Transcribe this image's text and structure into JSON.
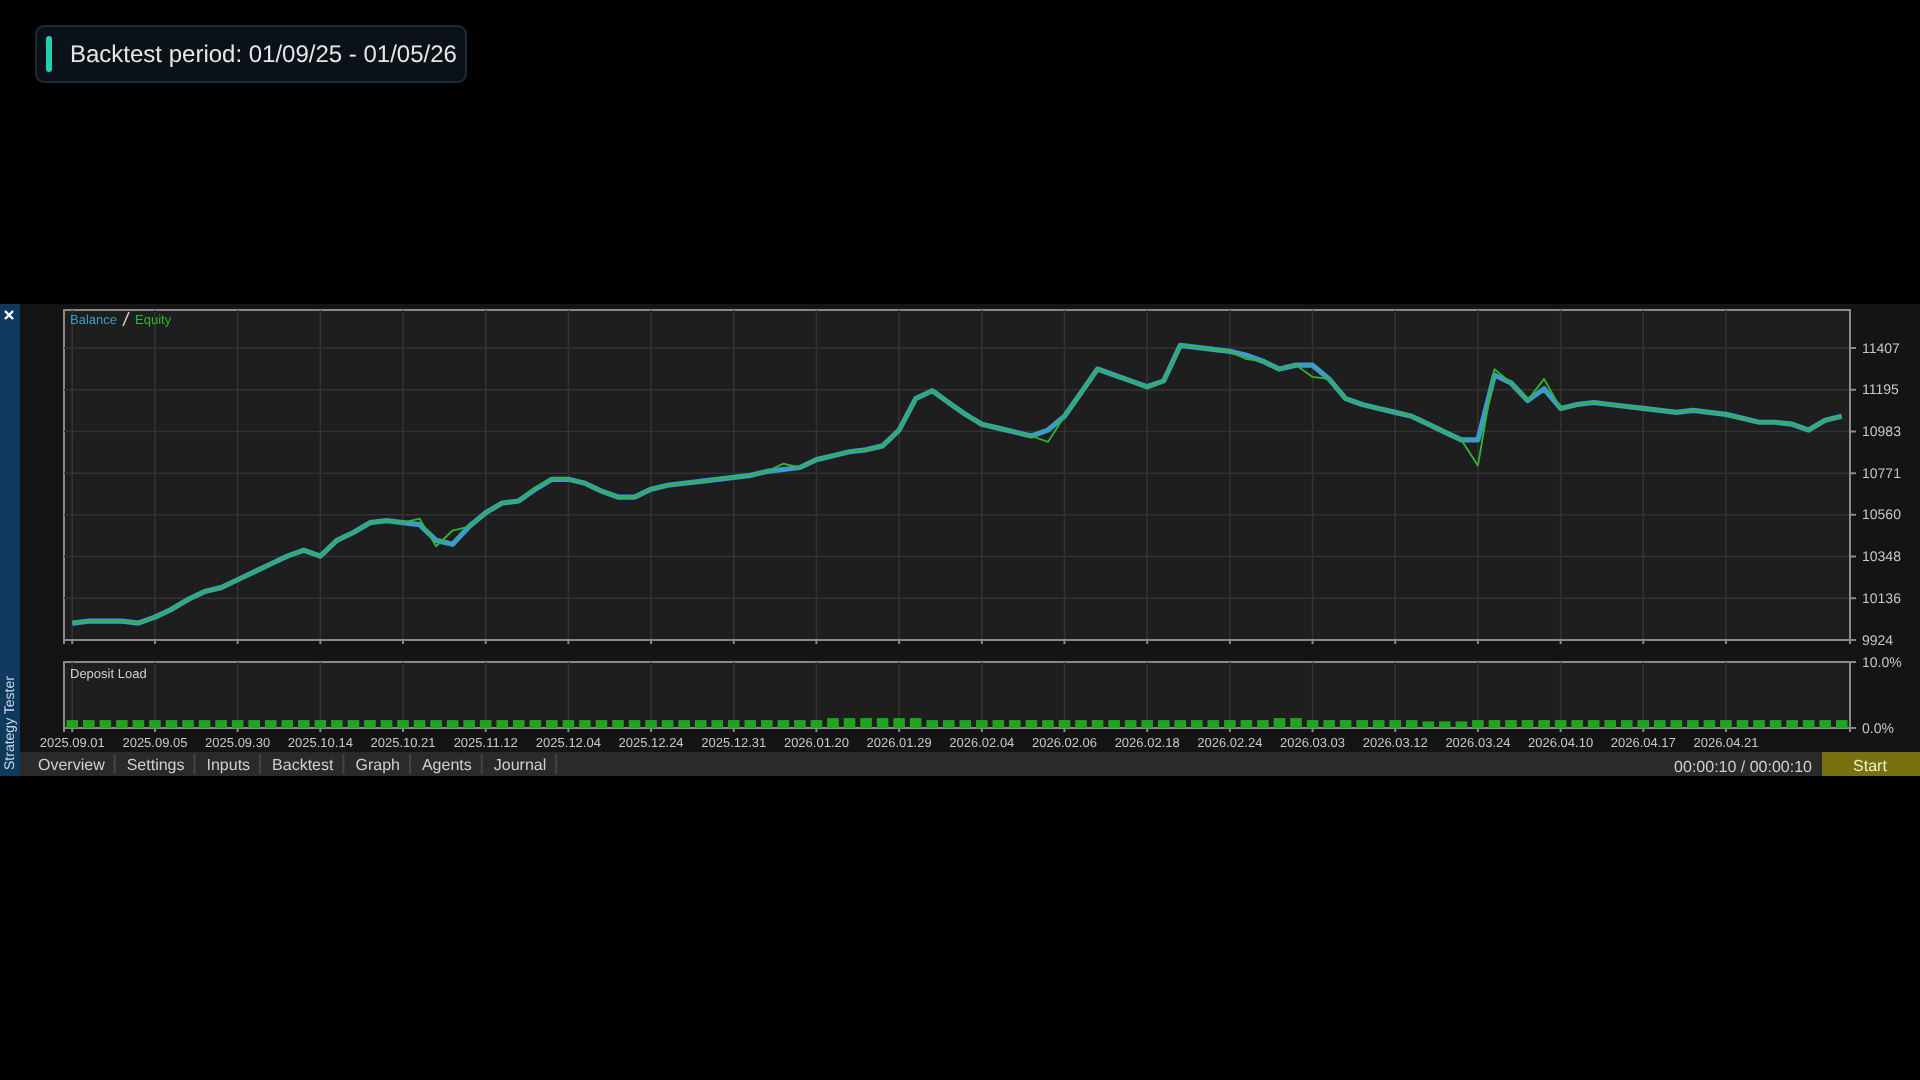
{
  "chart_data": [
    {
      "type": "line",
      "title": "Backtest period: 01/09/25 - 01/05/26",
      "ylim": [
        9924,
        11600
      ],
      "categories": [
        "2025.09.01",
        null,
        null,
        null,
        null,
        "2025.09.05",
        null,
        null,
        null,
        null,
        "2025.09.30",
        null,
        null,
        null,
        null,
        "2025.10.14",
        null,
        null,
        null,
        null,
        "2025.10.21",
        null,
        null,
        null,
        null,
        "2025.11.12",
        null,
        null,
        null,
        null,
        "2025.12.04",
        null,
        null,
        null,
        null,
        "2025.12.24",
        null,
        null,
        null,
        null,
        "2025.12.31",
        null,
        null,
        null,
        null,
        "2026.01.20",
        null,
        null,
        null,
        null,
        "2026.01.29",
        null,
        null,
        null,
        null,
        "2026.02.04",
        null,
        null,
        null,
        null,
        "2026.02.06",
        null,
        null,
        null,
        null,
        "2026.02.18",
        null,
        null,
        null,
        null,
        "2026.02.24",
        null,
        null,
        null,
        null,
        "2026.03.03",
        null,
        null,
        null,
        null,
        "2026.03.12",
        null,
        null,
        null,
        null,
        "2026.03.24",
        null,
        null,
        null,
        null,
        "2026.04.10",
        null,
        null,
        null,
        null,
        "2026.04.17",
        null,
        null,
        null,
        null,
        "2026.04.21",
        null,
        null,
        null,
        null,
        null,
        null,
        null
      ],
      "yticks": [
        9924,
        10136,
        10348,
        10560,
        10771,
        10983,
        11195,
        11407
      ],
      "tick_labels": "y",
      "grid": true,
      "legend": "top left",
      "series": [
        {
          "name": "Balance",
          "color": "#3b9cc4",
          "values": [
            10010,
            10020,
            10020,
            10020,
            10010,
            10040,
            10080,
            10130,
            10170,
            10190,
            10230,
            10270,
            10310,
            10350,
            10380,
            10350,
            10430,
            10470,
            10520,
            10530,
            10520,
            10510,
            10430,
            10410,
            10500,
            10570,
            10620,
            10630,
            10690,
            10740,
            10740,
            10720,
            10680,
            10650,
            10650,
            10690,
            10710,
            10720,
            10730,
            10740,
            10750,
            10760,
            10780,
            10790,
            10800,
            10840,
            10860,
            10880,
            10890,
            10910,
            10990,
            11150,
            11190,
            11130,
            11070,
            11020,
            11000,
            10980,
            10960,
            10990,
            11060,
            11180,
            11300,
            11270,
            11240,
            11210,
            11240,
            11420,
            11410,
            11400,
            11390,
            11370,
            11340,
            11300,
            11320,
            11320,
            11250,
            11150,
            11120,
            11100,
            11080,
            11060,
            11020,
            10980,
            10940,
            10940,
            11270,
            11230,
            11140,
            11200,
            11100,
            11120,
            11130,
            11120,
            11110,
            11100,
            11090,
            11080,
            11090,
            11080,
            11070,
            11050,
            11030,
            11030,
            11020,
            10990,
            11040,
            11060
          ]
        },
        {
          "name": "Equity",
          "color": "#2fb82f",
          "values": [
            10010,
            10020,
            10020,
            10020,
            10010,
            10040,
            10080,
            10130,
            10170,
            10190,
            10230,
            10270,
            10310,
            10350,
            10380,
            10350,
            10430,
            10470,
            10520,
            10530,
            10520,
            10540,
            10400,
            10480,
            10500,
            10570,
            10620,
            10630,
            10700,
            10740,
            10740,
            10720,
            10680,
            10650,
            10650,
            10690,
            10710,
            10720,
            10730,
            10740,
            10750,
            10760,
            10780,
            10820,
            10800,
            10840,
            10860,
            10880,
            10890,
            10910,
            10990,
            11150,
            11190,
            11130,
            11070,
            11020,
            11000,
            10980,
            10960,
            10930,
            11060,
            11180,
            11300,
            11270,
            11240,
            11210,
            11240,
            11420,
            11410,
            11400,
            11390,
            11350,
            11340,
            11300,
            11320,
            11260,
            11250,
            11150,
            11120,
            11100,
            11080,
            11060,
            11020,
            10980,
            10940,
            10810,
            11300,
            11230,
            11140,
            11250,
            11100,
            11120,
            11130,
            11120,
            11110,
            11100,
            11090,
            11080,
            11090,
            11080,
            11070,
            11050,
            11030,
            11030,
            11020,
            10990,
            11040,
            11060
          ]
        }
      ]
    },
    {
      "type": "bar",
      "title": "Deposit Load",
      "ylim": [
        0,
        10
      ],
      "categories": [
        "2025.09.01",
        null,
        null,
        null,
        null,
        "2025.09.05",
        null,
        null,
        null,
        null,
        "2025.09.30",
        null,
        null,
        null,
        null,
        "2025.10.14",
        null,
        null,
        null,
        null,
        "2025.10.21",
        null,
        null,
        null,
        null,
        "2025.11.12",
        null,
        null,
        null,
        null,
        "2025.12.04",
        null,
        null,
        null,
        null,
        "2025.12.24",
        null,
        null,
        null,
        null,
        "2025.12.31",
        null,
        null,
        null,
        null,
        "2026.01.20",
        null,
        null,
        null,
        null,
        "2026.01.29",
        null,
        null,
        null,
        null,
        "2026.02.04",
        null,
        null,
        null,
        null,
        "2026.02.06",
        null,
        null,
        null,
        null,
        "2026.02.18",
        null,
        null,
        null,
        null,
        "2026.02.24",
        null,
        null,
        null,
        null,
        "2026.03.03",
        null,
        null,
        null,
        null,
        "2026.03.12",
        null,
        null,
        null,
        null,
        "2026.03.24",
        null,
        null,
        null,
        null,
        "2026.04.10",
        null,
        null,
        null,
        null,
        "2026.04.17",
        null,
        null,
        null,
        null,
        "2026.04.21",
        null,
        null,
        null,
        null,
        null,
        null,
        null
      ],
      "yticks": [
        {
          "value": 0,
          "label": "0.0%"
        },
        {
          "value": 10,
          "label": "10.0%"
        }
      ],
      "grid": "x",
      "color": "#1fa51f",
      "values": [
        1.2,
        1.2,
        1.2,
        1.2,
        1.2,
        1.2,
        1.2,
        1.2,
        1.2,
        1.2,
        1.2,
        1.2,
        1.2,
        1.2,
        1.2,
        1.2,
        1.2,
        1.2,
        1.2,
        1.2,
        1.2,
        1.2,
        1.2,
        1.2,
        1.2,
        1.2,
        1.2,
        1.2,
        1.2,
        1.2,
        1.2,
        1.2,
        1.2,
        1.2,
        1.2,
        1.2,
        1.2,
        1.2,
        1.2,
        1.2,
        1.2,
        1.2,
        1.2,
        1.2,
        1.2,
        1.2,
        1.5,
        1.5,
        1.5,
        1.5,
        1.5,
        1.5,
        1.2,
        1.2,
        1.2,
        1.2,
        1.2,
        1.2,
        1.2,
        1.2,
        1.2,
        1.2,
        1.2,
        1.2,
        1.2,
        1.2,
        1.2,
        1.2,
        1.2,
        1.2,
        1.2,
        1.2,
        1.2,
        1.5,
        1.5,
        1.2,
        1.2,
        1.2,
        1.2,
        1.2,
        1.2,
        1.2,
        1.0,
        1.0,
        1.0,
        1.2,
        1.2,
        1.2,
        1.2,
        1.2,
        1.2,
        1.2,
        1.2,
        1.2,
        1.2,
        1.2,
        1.2,
        1.2,
        1.2,
        1.2,
        1.2,
        1.2,
        1.2,
        1.2,
        1.2,
        1.2,
        1.2,
        1.2
      ]
    },
    {
      "type": "other",
      "annotations": [
        "Strategy Tester",
        "Overview",
        "Settings",
        "Inputs",
        "Backtest",
        "Graph",
        "Agents",
        "Journal",
        "00:00:10 / 00:00:10",
        "Start"
      ]
    }
  ]
}
